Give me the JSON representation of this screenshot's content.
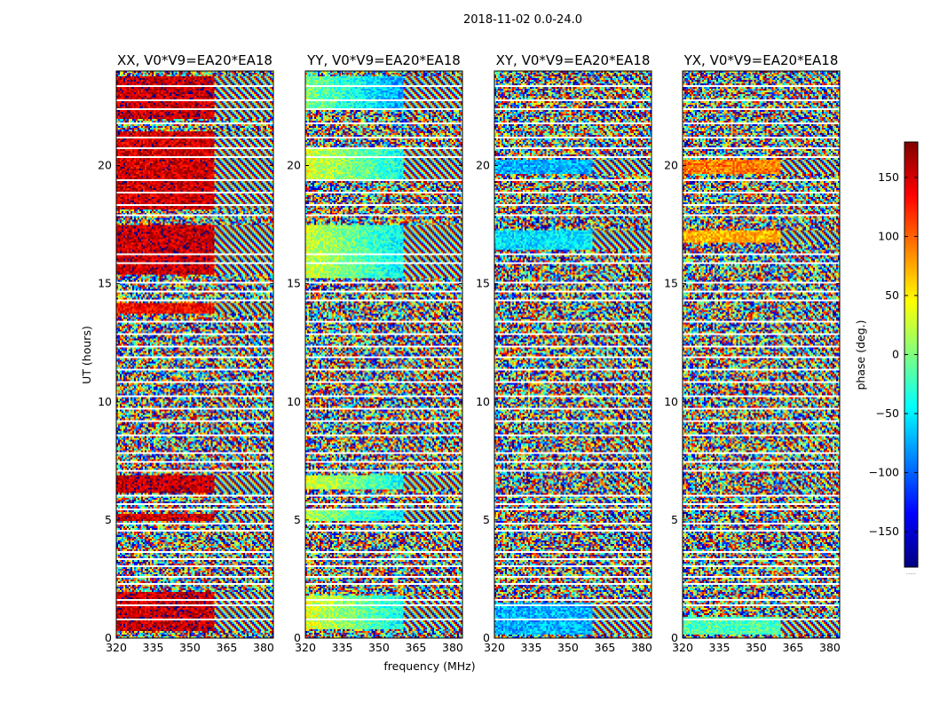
{
  "chart_data": {
    "type": "heatmap",
    "suptitle": "2018-11-02 0.0-24.0",
    "xlabel": "frequency (MHz)",
    "ylabel": "UT (hours)",
    "xlim": [
      320,
      384
    ],
    "ylim": [
      0,
      24
    ],
    "xticks": [
      320,
      335,
      350,
      365,
      380
    ],
    "yticks": [
      0,
      5,
      10,
      15,
      20
    ],
    "panels": [
      {
        "title": "XX, V0*V9=EA20*EA18",
        "product": "XX"
      },
      {
        "title": "YY, V0*V9=EA20*EA18",
        "product": "YY"
      },
      {
        "title": "XY, V0*V9=EA20*EA18",
        "product": "XY"
      },
      {
        "title": "YX, V0*V9=EA20*EA18",
        "product": "YX"
      }
    ],
    "colorbar": {
      "label": "phase (deg.)",
      "range": [
        -180,
        180
      ],
      "ticks": [
        -150,
        -100,
        -50,
        0,
        50,
        100,
        150
      ],
      "tick_labels": [
        "−150",
        "−100",
        "−50",
        "0",
        "50",
        "100",
        "150"
      ],
      "colormap": "jet",
      "overflow_label": "....."
    },
    "colormap_stops": [
      "#00007f",
      "#0000ff",
      "#007fff",
      "#00ffff",
      "#7fff7f",
      "#ffff00",
      "#ff7f00",
      "#ff0000",
      "#7f0000"
    ]
  }
}
